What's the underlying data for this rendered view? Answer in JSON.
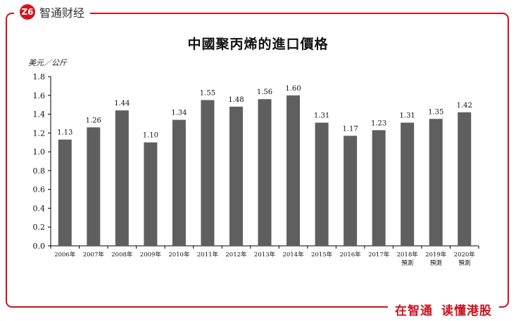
{
  "brand": {
    "logo_text": "Z6",
    "name": "智通财经"
  },
  "slogan": {
    "part1": "在智通",
    "part2": "读懂港股"
  },
  "colors": {
    "accent": "#c8141f",
    "bar": "#5f5f5f"
  },
  "chart_data": {
    "type": "bar",
    "title": "中國聚丙烯的進口價格",
    "ylabel": "美元／公斤",
    "xlabel": "",
    "ylim": [
      0,
      1.8
    ],
    "yticks": [
      "0.0",
      "0.2",
      "0.4",
      "0.6",
      "0.8",
      "1.0",
      "1.2",
      "1.4",
      "1.6",
      "1.8"
    ],
    "categories": [
      [
        "2006年"
      ],
      [
        "2007年"
      ],
      [
        "2008年"
      ],
      [
        "2009年"
      ],
      [
        "2010年"
      ],
      [
        "2011年"
      ],
      [
        "2012年"
      ],
      [
        "2013年"
      ],
      [
        "2014年"
      ],
      [
        "2015年"
      ],
      [
        "2016年"
      ],
      [
        "2017年"
      ],
      [
        "2018年",
        "預測"
      ],
      [
        "2019年",
        "預測"
      ],
      [
        "2020年",
        "預測"
      ]
    ],
    "values": [
      1.13,
      1.26,
      1.44,
      1.1,
      1.34,
      1.55,
      1.48,
      1.56,
      1.6,
      1.31,
      1.17,
      1.23,
      1.31,
      1.35,
      1.42
    ],
    "value_labels": [
      "1.13",
      "1.26",
      "1.44",
      "1.10",
      "1.34",
      "1.55",
      "1.48",
      "1.56",
      "1.60",
      "1.31",
      "1.17",
      "1.23",
      "1.31",
      "1.35",
      "1.42"
    ],
    "grid": false,
    "legend": "none"
  }
}
